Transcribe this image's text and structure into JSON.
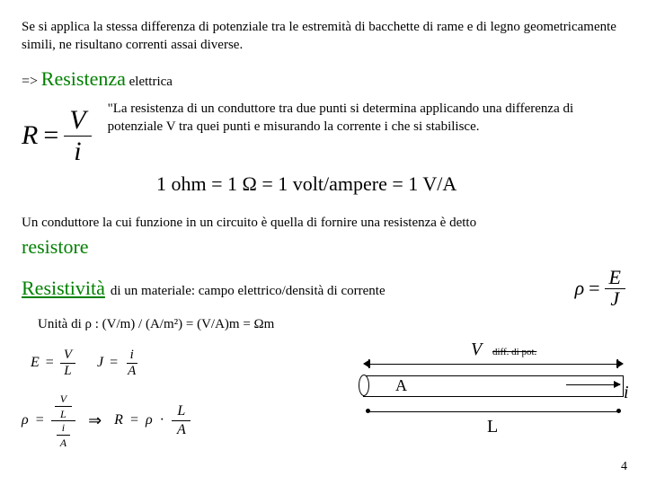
{
  "intro": "Se si applica la stessa differenza di potenziale tra le estremità di bacchette di rame e di legno geometricamente simili, ne risultano correnti assai diverse.",
  "heading": {
    "arrow": "=>",
    "title": "Resistenza",
    "sub": "elettrica"
  },
  "formula_R": {
    "lhs": "R",
    "eq": "=",
    "num": "V",
    "den": "i"
  },
  "definition": "\"La resistenza di un conduttore tra due punti si determina applicando una differenza di potenziale V tra quei punti e misurando la corrente i che si stabilisce.",
  "ohm_line": "1 ohm = 1 Ω = 1 volt/ampere = 1 V/A",
  "resistor_para": "Un conduttore la cui funzione in un circuito è quella di fornire una resistenza è detto",
  "resistor_word": "resistore",
  "resistivity": {
    "title": "Resistività",
    "tail": "di un materiale:  campo elettrico/densità di corrente",
    "formula": {
      "lhs": "ρ",
      "eq": "=",
      "num": "E",
      "den": "J"
    }
  },
  "units_line": "Unità di ρ : (V/m) / (A/m²) = (V/A)m = Ωm",
  "small_formulas": {
    "E": {
      "lhs": "E",
      "eq": "=",
      "num": "V",
      "den": "L"
    },
    "J": {
      "lhs": "J",
      "eq": "=",
      "num": "i",
      "den": "A"
    }
  },
  "derive": {
    "lhs": "ρ",
    "eq": "=",
    "n1_num": "V",
    "n1_den": "L",
    "d1_num": "i",
    "d1_den": "A",
    "arrow": "⇒",
    "R": "R",
    "eq2": "=",
    "rho": "ρ",
    "dot": "·",
    "r_num": "L",
    "r_den": "A"
  },
  "diagram": {
    "V": "V",
    "V_sub": "diff. di pot.",
    "A": "A",
    "i": "i",
    "L": "L"
  },
  "page_number": "4",
  "colors": {
    "green": "#008000",
    "text": "#000000",
    "bg": "#ffffff"
  }
}
